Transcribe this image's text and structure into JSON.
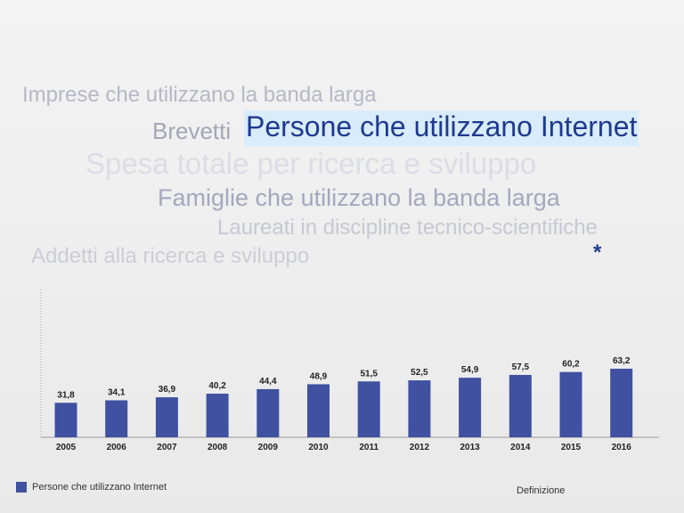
{
  "topics": {
    "imprese": "Imprese che utilizzano la banda larga",
    "brevetti": "Brevetti",
    "persone": "Persone che utilizzano Internet",
    "spesa": "Spesa totale per ricerca e sviluppo",
    "famiglie": "Famiglie che utilizzano la banda larga",
    "laureati": "Laureati in discipline tecnico-scientifiche",
    "addetti": "Addetti alla ricerca e sviluppo"
  },
  "asterisk": "*",
  "definition_link": "Definizione",
  "colors": {
    "bar": "#3f51a0",
    "selected_topic": "#1f3a8f",
    "selected_topic_bg": "#d8ecfb"
  },
  "chart_data": {
    "type": "bar",
    "categories": [
      "2005",
      "2006",
      "2007",
      "2008",
      "2009",
      "2010",
      "2011",
      "2012",
      "2013",
      "2014",
      "2015",
      "2016"
    ],
    "series": [
      {
        "name": "Persone che utilizzano Internet",
        "values": [
          31.8,
          34.1,
          36.9,
          40.2,
          44.4,
          48.9,
          51.5,
          52.5,
          54.9,
          57.5,
          60.2,
          63.2
        ],
        "labels": [
          "31,8",
          "34,1",
          "36,9",
          "40,2",
          "44,4",
          "48,9",
          "51,5",
          "52,5",
          "54,9",
          "57,5",
          "60,2",
          "63,2"
        ]
      }
    ],
    "title": "",
    "xlabel": "",
    "ylabel": "",
    "legend": "bottom-left",
    "grid": false
  }
}
